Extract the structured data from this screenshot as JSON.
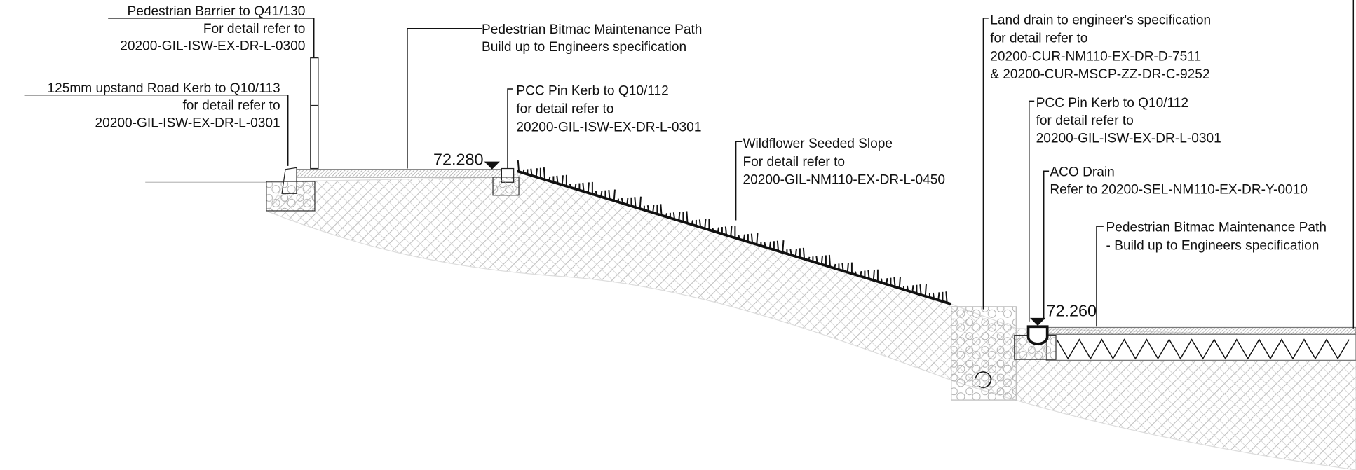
{
  "annotations": [
    {
      "lines": [
        "Pedestrian Barrier to Q41/130",
        "For detail refer to",
        "20200-GIL-ISW-EX-DR-L-0300"
      ]
    },
    {
      "lines": [
        "125mm upstand Road Kerb to Q10/113",
        "for detail refer to",
        "20200-GIL-ISW-EX-DR-L-0301"
      ]
    },
    {
      "lines": [
        "Pedestrian Bitmac Maintenance Path",
        "Build up to Engineers specification"
      ]
    },
    {
      "lines": [
        "PCC Pin Kerb to Q10/112",
        "for detail refer to",
        "20200-GIL-ISW-EX-DR-L-0301"
      ]
    },
    {
      "lines": [
        "Wildflower Seeded Slope",
        "For detail refer to",
        "20200-GIL-NM110-EX-DR-L-0450"
      ]
    },
    {
      "lines": [
        "Land drain to engineer's specification",
        "for detail refer to",
        "20200-CUR-NM110-EX-DR-D-7511",
        "& 20200-CUR-MSCP-ZZ-DR-C-9252"
      ]
    },
    {
      "lines": [
        "PCC Pin Kerb to Q10/112",
        "for detail refer to",
        "20200-GIL-ISW-EX-DR-L-0301"
      ]
    },
    {
      "lines": [
        "ACO Drain",
        "Refer to 20200-SEL-NM110-EX-DR-Y-0010"
      ]
    },
    {
      "lines": [
        "Pedestrian Bitmac Maintenance Path",
        "- Build up to Engineers specification"
      ]
    }
  ],
  "levels": [
    "72.280",
    "72.260"
  ]
}
